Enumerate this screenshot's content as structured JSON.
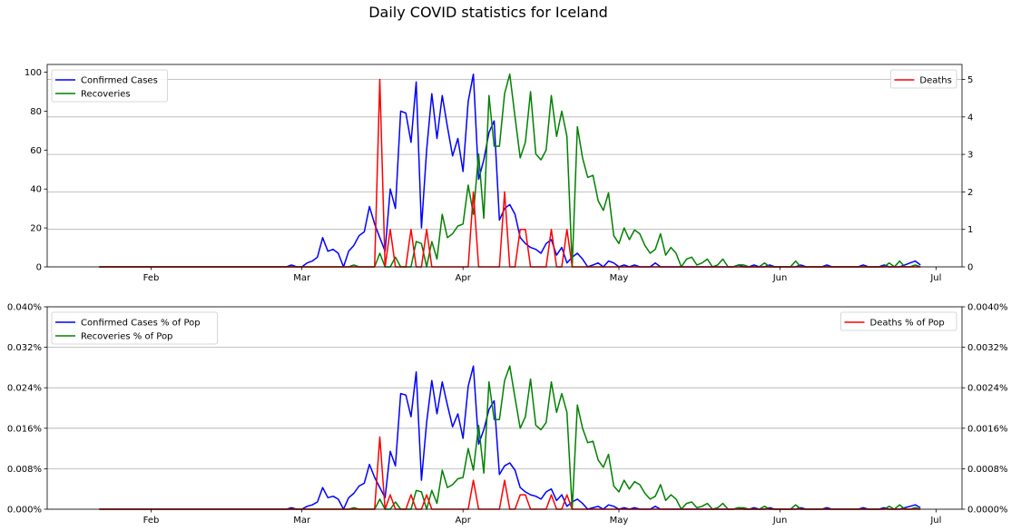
{
  "chart_data": {
    "title": "Daily COVID statistics for Iceland",
    "x": {
      "start": "2020-01-22",
      "end": "2020-06-28",
      "xlim": [
        "2020-01-12",
        "2020-07-06"
      ],
      "tick_dates": [
        "2020-02-01",
        "2020-03-01",
        "2020-04-01",
        "2020-05-01",
        "2020-06-01",
        "2020-07-01"
      ],
      "tick_labels": [
        "Feb",
        "Mar",
        "Apr",
        "May",
        "Jun",
        "Jul"
      ]
    },
    "panels": [
      {
        "type": "line",
        "left_axis": {
          "ylim": [
            0,
            104
          ],
          "ticks": [
            0,
            20,
            40,
            60,
            80,
            100
          ],
          "tick_labels": [
            "0",
            "20",
            "40",
            "60",
            "80",
            "100"
          ]
        },
        "right_axis": {
          "ylim": [
            0,
            5.4
          ],
          "ticks": [
            0,
            1,
            2,
            3,
            4,
            5
          ],
          "tick_labels": [
            "0",
            "1",
            "2",
            "3",
            "4",
            "5"
          ]
        },
        "grid": "horizontal at right-axis ticks",
        "legend_left": {
          "placement": "upper-left",
          "entries": [
            "Confirmed Cases",
            "Recoveries"
          ]
        },
        "legend_right": {
          "placement": "upper-right",
          "entries": [
            "Deaths"
          ]
        },
        "series": [
          {
            "name": "Confirmed Cases",
            "axis": "left",
            "color": "#0000ff",
            "sparse": [
              [
                37,
                1
              ],
              [
                38,
                0
              ],
              [
                39,
                0
              ],
              [
                40,
                2
              ],
              [
                41,
                3
              ],
              [
                42,
                5
              ],
              [
                43,
                15
              ],
              [
                44,
                8
              ],
              [
                45,
                9
              ],
              [
                46,
                7
              ],
              [
                47,
                0
              ],
              [
                48,
                8
              ],
              [
                49,
                11
              ],
              [
                50,
                16
              ],
              [
                51,
                18
              ],
              [
                52,
                31
              ],
              [
                53,
                22
              ],
              [
                54,
                15
              ],
              [
                55,
                8
              ],
              [
                56,
                40
              ],
              [
                57,
                30
              ],
              [
                58,
                80
              ],
              [
                59,
                79
              ],
              [
                60,
                64
              ],
              [
                61,
                95
              ],
              [
                62,
                20
              ],
              [
                63,
                60
              ],
              [
                64,
                89
              ],
              [
                65,
                66
              ],
              [
                66,
                88
              ],
              [
                67,
                72
              ],
              [
                68,
                57
              ],
              [
                69,
                66
              ],
              [
                70,
                49
              ],
              [
                71,
                85
              ],
              [
                72,
                99
              ],
              [
                73,
                45
              ],
              [
                74,
                55
              ],
              [
                75,
                69
              ],
              [
                76,
                75
              ],
              [
                77,
                24
              ],
              [
                78,
                30
              ],
              [
                79,
                32
              ],
              [
                80,
                27
              ],
              [
                81,
                15
              ],
              [
                82,
                12
              ],
              [
                83,
                10
              ],
              [
                84,
                9
              ],
              [
                85,
                7
              ],
              [
                86,
                12
              ],
              [
                87,
                14
              ],
              [
                88,
                6
              ],
              [
                89,
                10
              ],
              [
                90,
                2
              ],
              [
                91,
                5
              ],
              [
                92,
                7
              ],
              [
                93,
                4
              ],
              [
                94,
                0
              ],
              [
                95,
                1
              ],
              [
                96,
                2
              ],
              [
                97,
                0
              ],
              [
                98,
                3
              ],
              [
                99,
                2
              ],
              [
                100,
                0
              ],
              [
                101,
                1
              ],
              [
                102,
                0
              ],
              [
                103,
                1
              ],
              [
                104,
                0
              ],
              [
                107,
                2
              ],
              [
                108,
                0
              ],
              [
                123,
                1
              ],
              [
                124,
                0
              ],
              [
                126,
                1
              ],
              [
                127,
                0
              ],
              [
                129,
                1
              ],
              [
                130,
                0
              ],
              [
                135,
                1
              ],
              [
                136,
                0
              ],
              [
                140,
                1
              ],
              [
                141,
                0
              ],
              [
                147,
                1
              ],
              [
                148,
                0
              ],
              [
                151,
                1
              ],
              [
                152,
                0
              ],
              [
                155,
                1
              ],
              [
                156,
                2
              ],
              [
                157,
                3
              ],
              [
                158,
                1
              ],
              [
                159,
                3
              ],
              [
                160,
                2
              ],
              [
                161,
                3
              ],
              [
                162,
                1
              ],
              [
                163,
                0
              ],
              [
                164,
                1
              ],
              [
                165,
                0
              ],
              [
                166,
                6
              ],
              [
                167,
                3
              ],
              [
                168,
                4
              ],
              [
                169,
                2
              ]
            ]
          },
          {
            "name": "Recoveries",
            "axis": "left",
            "color": "#008000",
            "sparse": [
              [
                49,
                1
              ],
              [
                50,
                0
              ],
              [
                54,
                7
              ],
              [
                55,
                0
              ],
              [
                56,
                0
              ],
              [
                57,
                5
              ],
              [
                58,
                0
              ],
              [
                61,
                13
              ],
              [
                62,
                12
              ],
              [
                63,
                0
              ],
              [
                64,
                13
              ],
              [
                65,
                4
              ],
              [
                66,
                27
              ],
              [
                67,
                15
              ],
              [
                68,
                17
              ],
              [
                69,
                21
              ],
              [
                70,
                22
              ],
              [
                71,
                42
              ],
              [
                72,
                27
              ],
              [
                73,
                58
              ],
              [
                74,
                25
              ],
              [
                75,
                88
              ],
              [
                76,
                62
              ],
              [
                77,
                62
              ],
              [
                78,
                89
              ],
              [
                79,
                99
              ],
              [
                80,
                77
              ],
              [
                81,
                56
              ],
              [
                82,
                64
              ],
              [
                83,
                90
              ],
              [
                84,
                58
              ],
              [
                85,
                55
              ],
              [
                86,
                60
              ],
              [
                87,
                88
              ],
              [
                88,
                67
              ],
              [
                89,
                80
              ],
              [
                90,
                67
              ],
              [
                91,
                0
              ],
              [
                92,
                72
              ],
              [
                93,
                56
              ],
              [
                94,
                46
              ],
              [
                95,
                47
              ],
              [
                96,
                34
              ],
              [
                97,
                29
              ],
              [
                98,
                38
              ],
              [
                99,
                16
              ],
              [
                100,
                12
              ],
              [
                101,
                20
              ],
              [
                102,
                14
              ],
              [
                103,
                19
              ],
              [
                104,
                17
              ],
              [
                105,
                11
              ],
              [
                106,
                7
              ],
              [
                107,
                9
              ],
              [
                108,
                17
              ],
              [
                109,
                6
              ],
              [
                110,
                10
              ],
              [
                111,
                7
              ],
              [
                112,
                0
              ],
              [
                113,
                4
              ],
              [
                114,
                5
              ],
              [
                115,
                1
              ],
              [
                116,
                2
              ],
              [
                117,
                4
              ],
              [
                118,
                0
              ],
              [
                119,
                1
              ],
              [
                120,
                4
              ],
              [
                121,
                0
              ],
              [
                123,
                1
              ],
              [
                124,
                1
              ],
              [
                125,
                0
              ],
              [
                128,
                2
              ],
              [
                129,
                0
              ],
              [
                134,
                3
              ],
              [
                135,
                0
              ],
              [
                152,
                2
              ],
              [
                153,
                0
              ],
              [
                154,
                3
              ],
              [
                155,
                0
              ],
              [
                157,
                1
              ],
              [
                158,
                0
              ],
              [
                161,
                4
              ],
              [
                162,
                0
              ]
            ]
          },
          {
            "name": "Deaths",
            "axis": "right",
            "color": "#ff0000",
            "sparse": [
              [
                53,
                0
              ],
              [
                54,
                5
              ],
              [
                55,
                0
              ],
              [
                56,
                1
              ],
              [
                57,
                0
              ],
              [
                60,
                1
              ],
              [
                61,
                0
              ],
              [
                62,
                0
              ],
              [
                63,
                1
              ],
              [
                64,
                0
              ],
              [
                71,
                0
              ],
              [
                72,
                2
              ],
              [
                73,
                0
              ],
              [
                77,
                0
              ],
              [
                78,
                2
              ],
              [
                79,
                0
              ],
              [
                80,
                0
              ],
              [
                81,
                1
              ],
              [
                82,
                1
              ],
              [
                83,
                0
              ],
              [
                86,
                0
              ],
              [
                87,
                1
              ],
              [
                88,
                0
              ],
              [
                89,
                0
              ],
              [
                90,
                1
              ],
              [
                91,
                0
              ]
            ]
          }
        ]
      },
      {
        "type": "line",
        "left_axis": {
          "ylim": [
            0,
            0.04
          ],
          "ticks": [
            0,
            0.008,
            0.016,
            0.024,
            0.032,
            0.04
          ],
          "tick_labels": [
            "0.000%",
            "0.008%",
            "0.016%",
            "0.024%",
            "0.032%",
            "0.040%"
          ]
        },
        "right_axis": {
          "ylim": [
            0,
            0.004
          ],
          "ticks": [
            0,
            0.0008,
            0.0016,
            0.0024,
            0.0032,
            0.004
          ],
          "tick_labels": [
            "0.0000%",
            "0.0008%",
            "0.0016%",
            "0.0024%",
            "0.0032%",
            "0.0040%"
          ]
        },
        "grid": "horizontal at right-axis ticks",
        "legend_left": {
          "placement": "upper-left",
          "entries": [
            "Confirmed Cases % of Pop",
            "Recoveries % of Pop"
          ]
        },
        "legend_right": {
          "placement": "upper-right",
          "entries": [
            "Deaths % of Pop"
          ]
        },
        "population": 350000,
        "series": [
          {
            "name": "Confirmed Cases % of Pop",
            "axis": "left",
            "color": "#0000ff",
            "from_series": "Confirmed Cases"
          },
          {
            "name": "Recoveries % of Pop",
            "axis": "left",
            "color": "#008000",
            "from_series": "Recoveries"
          },
          {
            "name": "Deaths % of Pop",
            "axis": "right",
            "color": "#ff0000",
            "from_series": "Deaths"
          }
        ]
      }
    ]
  }
}
